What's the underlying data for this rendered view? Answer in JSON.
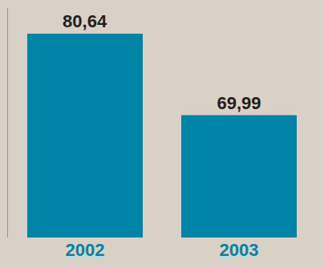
{
  "chart_data": {
    "type": "bar",
    "categories": [
      "2002",
      "2003"
    ],
    "values": [
      80.64,
      69.99
    ],
    "value_labels": [
      "80,64",
      "69,99"
    ],
    "color": "#0085a8",
    "ylim": [
      54,
      84
    ],
    "data_labels": true,
    "tick_labels": "x",
    "grid": false
  }
}
